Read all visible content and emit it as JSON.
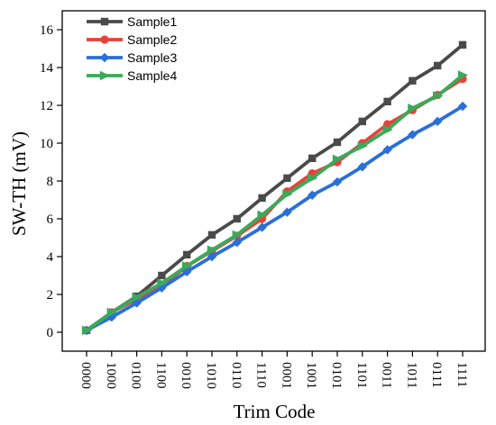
{
  "chart_data": {
    "type": "line",
    "xlabel": "Trim Code",
    "ylabel": "SW-TH (mV)",
    "categories": [
      "0000",
      "1000",
      "0100",
      "1100",
      "0010",
      "1010",
      "0110",
      "1110",
      "0001",
      "1001",
      "0101",
      "1101",
      "0011",
      "1011",
      "0111",
      "1111"
    ],
    "ylim": [
      -1,
      17
    ],
    "yticks": [
      0,
      2,
      4,
      6,
      8,
      10,
      12,
      14,
      16
    ],
    "grid": false,
    "legend_position": "top-left",
    "series": [
      {
        "name": "Sample1",
        "color": "#4a4a4a",
        "marker": "square",
        "values": [
          0.1,
          1.05,
          1.9,
          3.0,
          4.1,
          5.15,
          6.0,
          7.1,
          8.15,
          9.2,
          10.05,
          11.15,
          12.2,
          13.3,
          14.1,
          15.2
        ]
      },
      {
        "name": "Sample2",
        "color": "#e8413c",
        "marker": "circle",
        "values": [
          0.1,
          1.05,
          1.75,
          2.45,
          3.5,
          4.3,
          5.1,
          6.0,
          7.45,
          8.4,
          9.0,
          10.0,
          11.0,
          11.75,
          12.55,
          13.4
        ]
      },
      {
        "name": "Sample3",
        "color": "#2a6fd8",
        "marker": "diamond",
        "values": [
          0.1,
          0.8,
          1.55,
          2.35,
          3.2,
          4.0,
          4.75,
          5.55,
          6.35,
          7.25,
          7.95,
          8.75,
          9.65,
          10.45,
          11.15,
          11.95
        ]
      },
      {
        "name": "Sample4",
        "color": "#3aaa5a",
        "marker": "triangle-right",
        "values": [
          0.1,
          1.05,
          1.85,
          2.6,
          3.5,
          4.35,
          5.15,
          6.2,
          7.3,
          8.15,
          9.15,
          9.85,
          10.7,
          11.85,
          12.5,
          13.6
        ]
      }
    ]
  }
}
